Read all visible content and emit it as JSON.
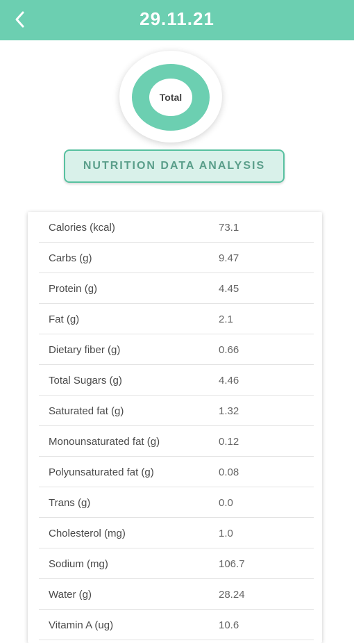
{
  "header": {
    "title": "29.11.21",
    "back_icon": "chevron-left-icon",
    "color": "#6ccfb1"
  },
  "donut": {
    "label": "Total",
    "ring_color": "#6ccfb1"
  },
  "analysis_button": {
    "label": "NUTRITION DATA ANALYSIS"
  },
  "nutrients": [
    {
      "label": "Calories (kcal)",
      "value": "73.1"
    },
    {
      "label": "Carbs (g)",
      "value": "9.47"
    },
    {
      "label": "Protein (g)",
      "value": "4.45"
    },
    {
      "label": "Fat (g)",
      "value": "2.1"
    },
    {
      "label": "Dietary fiber (g)",
      "value": "0.66"
    },
    {
      "label": "Total Sugars (g)",
      "value": "4.46"
    },
    {
      "label": "Saturated fat (g)",
      "value": "1.32"
    },
    {
      "label": "Monounsaturated fat (g)",
      "value": "0.12"
    },
    {
      "label": "Polyunsaturated fat (g)",
      "value": "0.08"
    },
    {
      "label": "Trans (g)",
      "value": "0.0"
    },
    {
      "label": "Cholesterol (mg)",
      "value": "1.0"
    },
    {
      "label": "Sodium (mg)",
      "value": "106.7"
    },
    {
      "label": "Water (g)",
      "value": "28.24"
    },
    {
      "label": "Vitamin A (ug)",
      "value": "10.6"
    }
  ]
}
